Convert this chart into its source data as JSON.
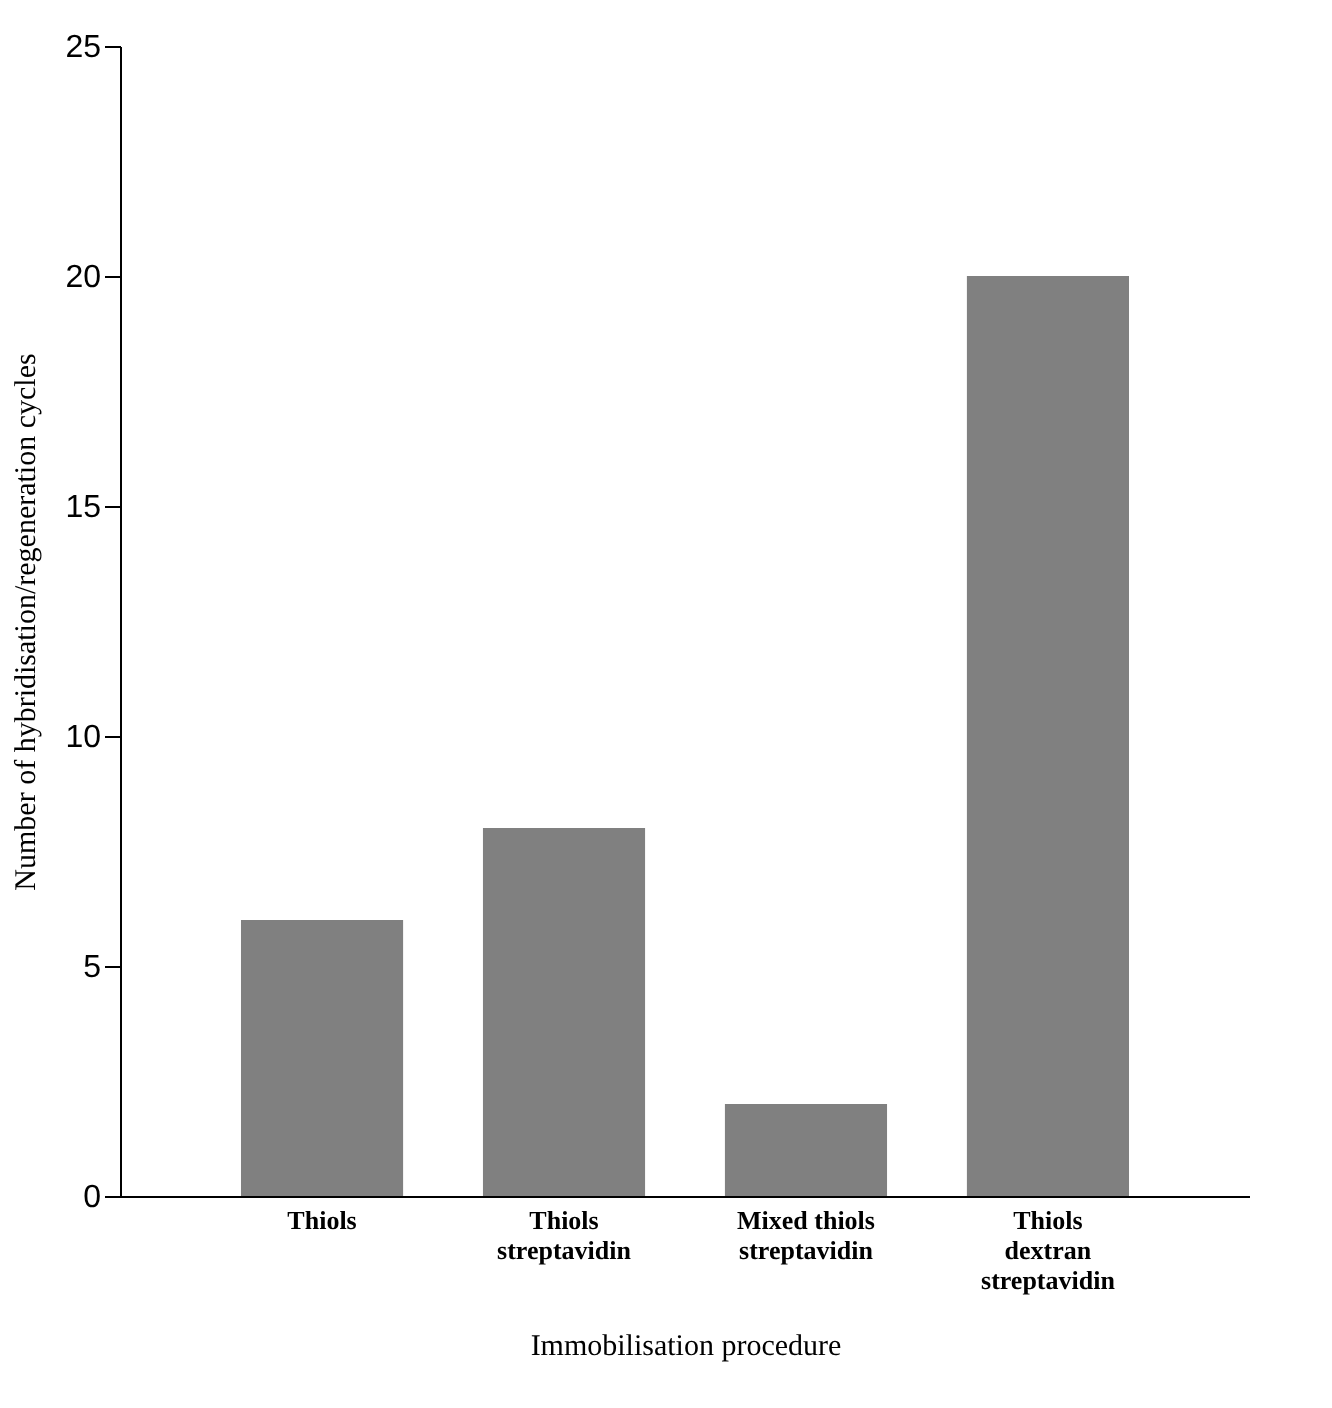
{
  "chart_data": {
    "type": "bar",
    "xlabel": "Immobilisation procedure",
    "ylabel": "Number of hybridisation/regeneration cycles",
    "categories": [
      "Thiols",
      "Thiols\nstreptavidin",
      "Mixed thiols\nstreptavidin",
      "Thiols\ndextran\nstreptavidin"
    ],
    "values": [
      6,
      8,
      2,
      20
    ],
    "color": "#808080",
    "ylim": [
      0,
      25
    ],
    "yticks": [
      0,
      5,
      10,
      15,
      20,
      25
    ],
    "grid": false
  }
}
